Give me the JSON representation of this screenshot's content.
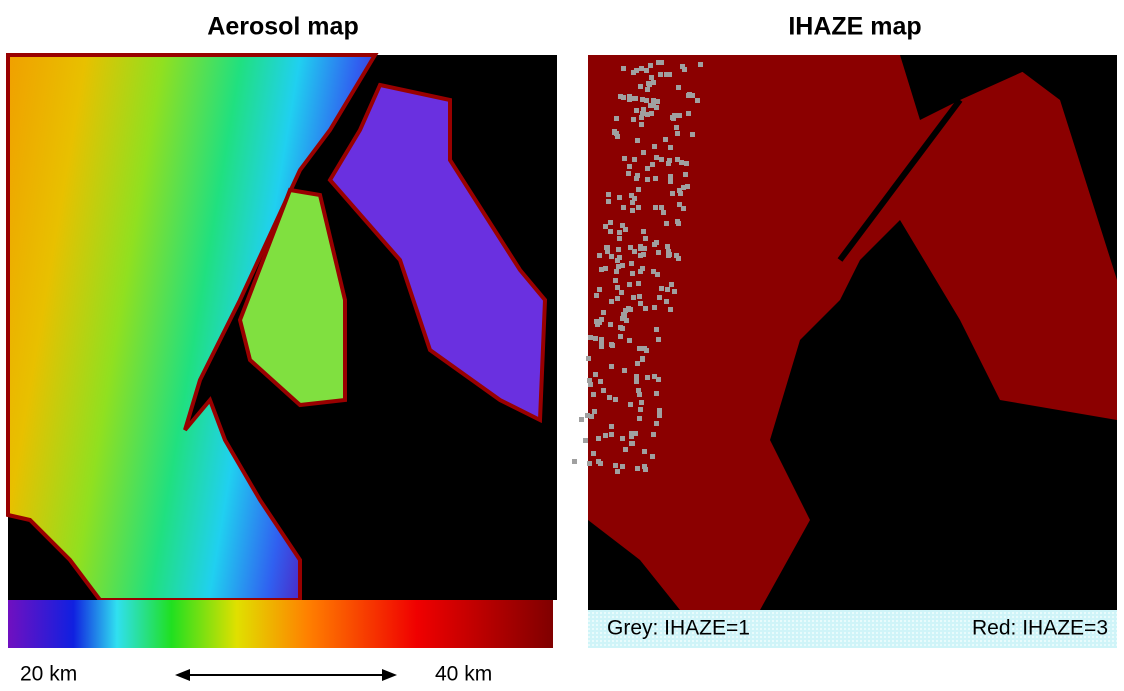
{
  "panels": [
    {
      "title": "Aerosol map",
      "scale": {
        "min_label": "20 km",
        "max_label": "40 km"
      }
    },
    {
      "title": "IHAZE map",
      "legend": {
        "grey": "Grey: IHAZE=1",
        "red": "Red: IHAZE=3"
      }
    }
  ]
}
